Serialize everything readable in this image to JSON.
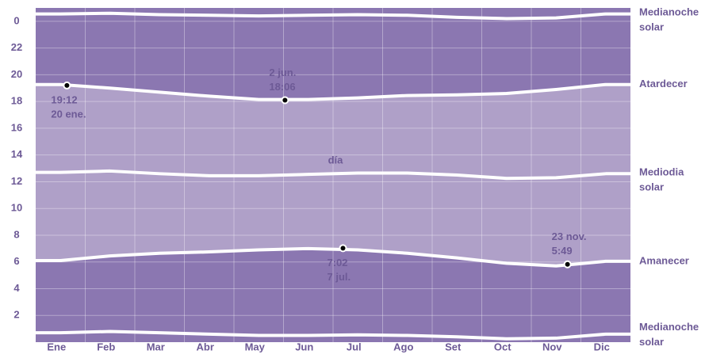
{
  "chart_data": {
    "type": "daylight",
    "categories": [
      "Ene",
      "Feb",
      "Mar",
      "Abr",
      "May",
      "Jun",
      "Jul",
      "Ago",
      "Set",
      "Oct",
      "Nov",
      "Dic"
    ],
    "ylim": [
      0,
      25
    ],
    "yticks": [
      2,
      4,
      6,
      8,
      10,
      12,
      14,
      16,
      18,
      20,
      22,
      {
        "value": 24,
        "label": "0"
      }
    ],
    "grid": true,
    "night_color": "#8b77b1",
    "day_color": "#afa0c8",
    "day_label": "día",
    "series": [
      {
        "name": "Medianoche solar",
        "color": "#ffffff",
        "values": [
          24.55,
          24.6,
          24.5,
          24.45,
          24.4,
          24.45,
          24.5,
          24.45,
          24.3,
          24.2,
          24.25,
          24.55
        ]
      },
      {
        "name": "Atardecer",
        "color": "#ffffff",
        "values": [
          19.27,
          19.0,
          18.7,
          18.4,
          18.15,
          18.15,
          18.27,
          18.45,
          18.5,
          18.6,
          18.9,
          19.27
        ]
      },
      {
        "name": "Mediodia solar",
        "color": "#ffffff",
        "values": [
          12.7,
          12.8,
          12.6,
          12.45,
          12.45,
          12.55,
          12.65,
          12.65,
          12.5,
          12.25,
          12.3,
          12.6
        ]
      },
      {
        "name": "Amanecer",
        "color": "#ffffff",
        "values": [
          6.1,
          6.45,
          6.65,
          6.75,
          6.9,
          7.0,
          6.9,
          6.65,
          6.3,
          5.9,
          5.7,
          6.05
        ]
      },
      {
        "name": "Medianoche solar",
        "color": "#ffffff",
        "values": [
          0.7,
          0.8,
          0.7,
          0.6,
          0.5,
          0.5,
          0.55,
          0.5,
          0.4,
          0.25,
          0.3,
          0.6
        ]
      }
    ],
    "annotations": [
      {
        "time": "19:12",
        "date": "20 ene.",
        "x": 0.63,
        "value": 19.2,
        "position": "below"
      },
      {
        "time": "18:06",
        "date": "2 jun.",
        "x": 5.03,
        "value": 18.1,
        "position": "above"
      },
      {
        "time": "7:02",
        "date": "7 jul.",
        "x": 6.2,
        "value": 7.03,
        "position": "below"
      },
      {
        "time": "5:49",
        "date": "23 nov.",
        "x": 10.73,
        "value": 5.82,
        "position": "above"
      }
    ]
  }
}
